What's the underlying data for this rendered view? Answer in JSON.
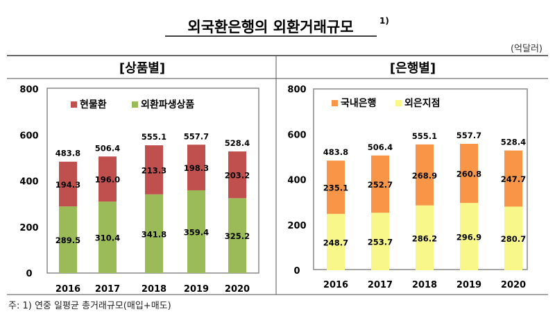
{
  "title": "외국환은행의 외환거래규모",
  "title_sup": "1)",
  "unit": "(억달러)",
  "footnote": "주: 1) 연중 일평균 총거래규모(매입+매도)",
  "colors": {
    "spot": "#c0504d",
    "deriv": "#9bbb59",
    "domestic": "#f79646",
    "foreign": "#f7f78a"
  },
  "chart_data": [
    {
      "type": "bar",
      "stacked": true,
      "panel_title": "[상품별]",
      "categories": [
        "2016",
        "2017",
        "2018",
        "2019",
        "2020"
      ],
      "ylim": [
        0,
        800
      ],
      "yticks": [
        "0",
        "200",
        "400",
        "600",
        "800"
      ],
      "legend": "top-left",
      "series": [
        {
          "name": "외환파생상품",
          "values": [
            289.5,
            310.4,
            341.8,
            359.4,
            325.2
          ],
          "labels": [
            "289.5",
            "310.4",
            "341.8",
            "359.4",
            "325.2"
          ]
        },
        {
          "name": "현물환",
          "values": [
            194.3,
            196.0,
            213.3,
            198.3,
            203.2
          ],
          "labels": [
            "194.3",
            "196.0",
            "213.3",
            "198.3",
            "203.2"
          ]
        }
      ],
      "totals": [
        "483.8",
        "506.4",
        "555.1",
        "557.7",
        "528.4"
      ]
    },
    {
      "type": "bar",
      "stacked": true,
      "panel_title": "[은행별]",
      "categories": [
        "2016",
        "2017",
        "2018",
        "2019",
        "2020"
      ],
      "ylim": [
        0,
        800
      ],
      "yticks": [
        "0",
        "200",
        "400",
        "600",
        "800"
      ],
      "legend": "top-left",
      "series": [
        {
          "name": "외은지점",
          "values": [
            248.7,
            253.7,
            286.2,
            296.9,
            280.7
          ],
          "labels": [
            "248.7",
            "253.7",
            "286.2",
            "296.9",
            "280.7"
          ]
        },
        {
          "name": "국내은행",
          "values": [
            235.1,
            252.7,
            268.9,
            260.8,
            247.7
          ],
          "labels": [
            "235.1",
            "252.7",
            "268.9",
            "260.8",
            "247.7"
          ]
        }
      ],
      "totals": [
        "483.8",
        "506.4",
        "555.1",
        "557.7",
        "528.4"
      ]
    }
  ]
}
